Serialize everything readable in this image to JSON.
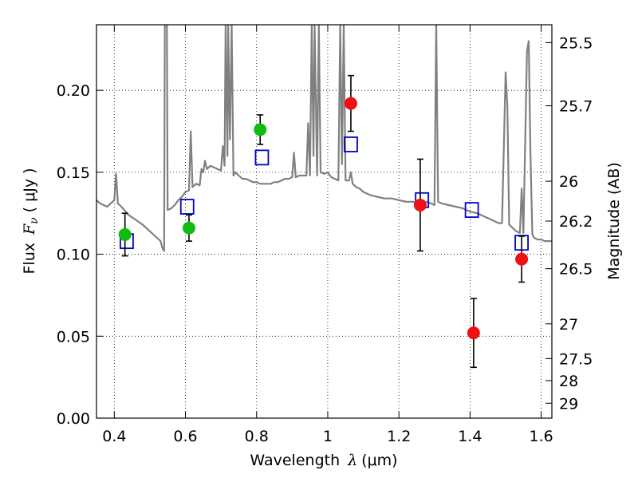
{
  "chart_data": {
    "type": "scatter",
    "xlabel_main": "Wavelength",
    "xlabel_symbol": "λ",
    "xlabel_unit": "(μm)",
    "ylabel_main": "Flux",
    "ylabel_symbol": "F",
    "ylabel_subscript": "ν",
    "ylabel_unit": "( μJy )",
    "y2label": "Magnitude (AB)",
    "xlim": [
      0.35,
      1.63
    ],
    "ylim": [
      0.0,
      0.24
    ],
    "grid": true,
    "grid_style": "dotted",
    "x_ticks": [
      {
        "value": 0.4,
        "label": "0.4"
      },
      {
        "value": 0.6,
        "label": "0.6"
      },
      {
        "value": 0.8,
        "label": "0.8"
      },
      {
        "value": 1.0,
        "label": "1"
      },
      {
        "value": 1.2,
        "label": "1.2"
      },
      {
        "value": 1.4,
        "label": "1.4"
      },
      {
        "value": 1.6,
        "label": "1.6"
      }
    ],
    "y_ticks": [
      {
        "value": 0.0,
        "label": "0.00"
      },
      {
        "value": 0.05,
        "label": "0.05"
      },
      {
        "value": 0.1,
        "label": "0.10"
      },
      {
        "value": 0.15,
        "label": "0.15"
      },
      {
        "value": 0.2,
        "label": "0.20"
      }
    ],
    "y2_ticks": [
      {
        "value": 25.5,
        "label": "25.5"
      },
      {
        "value": 25.7,
        "label": "25.7"
      },
      {
        "value": 26,
        "label": "26"
      },
      {
        "value": 26.2,
        "label": "26.2"
      },
      {
        "value": 26.5,
        "label": "26.5"
      },
      {
        "value": 27,
        "label": "27"
      },
      {
        "value": 27.5,
        "label": "27.5"
      },
      {
        "value": 28,
        "label": "28"
      },
      {
        "value": 29,
        "label": "29"
      }
    ],
    "series": [
      {
        "kind": "line",
        "color": "#808080",
        "points": [
          [
            0.35,
            0.133
          ],
          [
            0.36,
            0.131
          ],
          [
            0.37,
            0.13
          ],
          [
            0.38,
            0.129
          ],
          [
            0.39,
            0.131
          ],
          [
            0.4,
            0.133
          ],
          [
            0.405,
            0.149
          ],
          [
            0.41,
            0.131
          ],
          [
            0.42,
            0.129
          ],
          [
            0.44,
            0.124
          ],
          [
            0.46,
            0.121
          ],
          [
            0.48,
            0.118
          ],
          [
            0.5,
            0.114
          ],
          [
            0.52,
            0.11
          ],
          [
            0.53,
            0.108
          ],
          [
            0.535,
            0.104
          ],
          [
            0.54,
            0.102
          ],
          [
            0.542,
            0.24
          ],
          [
            0.548,
            0.24
          ],
          [
            0.55,
            0.127
          ],
          [
            0.56,
            0.128
          ],
          [
            0.57,
            0.13
          ],
          [
            0.58,
            0.133
          ],
          [
            0.59,
            0.135
          ],
          [
            0.6,
            0.138
          ],
          [
            0.61,
            0.139
          ],
          [
            0.615,
            0.175
          ],
          [
            0.62,
            0.141
          ],
          [
            0.63,
            0.143
          ],
          [
            0.64,
            0.142
          ],
          [
            0.645,
            0.152
          ],
          [
            0.65,
            0.15
          ],
          [
            0.655,
            0.157
          ],
          [
            0.66,
            0.152
          ],
          [
            0.67,
            0.154
          ],
          [
            0.68,
            0.153
          ],
          [
            0.69,
            0.152
          ],
          [
            0.7,
            0.151
          ],
          [
            0.705,
            0.166
          ],
          [
            0.71,
            0.154
          ],
          [
            0.713,
            0.24
          ],
          [
            0.718,
            0.16
          ],
          [
            0.72,
            0.24
          ],
          [
            0.725,
            0.17
          ],
          [
            0.73,
            0.24
          ],
          [
            0.735,
            0.148
          ],
          [
            0.74,
            0.15
          ],
          [
            0.75,
            0.148
          ],
          [
            0.76,
            0.146
          ],
          [
            0.77,
            0.146
          ],
          [
            0.78,
            0.145
          ],
          [
            0.79,
            0.144
          ],
          [
            0.8,
            0.144
          ],
          [
            0.81,
            0.143
          ],
          [
            0.82,
            0.143
          ],
          [
            0.83,
            0.143
          ],
          [
            0.84,
            0.143
          ],
          [
            0.85,
            0.144
          ],
          [
            0.86,
            0.144
          ],
          [
            0.87,
            0.145
          ],
          [
            0.88,
            0.146
          ],
          [
            0.89,
            0.146
          ],
          [
            0.9,
            0.147
          ],
          [
            0.905,
            0.162
          ],
          [
            0.91,
            0.147
          ],
          [
            0.92,
            0.148
          ],
          [
            0.93,
            0.148
          ],
          [
            0.94,
            0.148
          ],
          [
            0.945,
            0.18
          ],
          [
            0.95,
            0.148
          ],
          [
            0.955,
            0.24
          ],
          [
            0.96,
            0.16
          ],
          [
            0.963,
            0.24
          ],
          [
            0.97,
            0.148
          ],
          [
            0.975,
            0.24
          ],
          [
            0.98,
            0.15
          ],
          [
            0.99,
            0.149
          ],
          [
            1.0,
            0.15
          ],
          [
            1.01,
            0.147
          ],
          [
            1.02,
            0.146
          ],
          [
            1.03,
            0.145
          ],
          [
            1.035,
            0.24
          ],
          [
            1.04,
            0.155
          ],
          [
            1.045,
            0.24
          ],
          [
            1.05,
            0.145
          ],
          [
            1.06,
            0.145
          ],
          [
            1.065,
            0.15
          ],
          [
            1.07,
            0.143
          ],
          [
            1.08,
            0.141
          ],
          [
            1.09,
            0.14
          ],
          [
            1.1,
            0.138
          ],
          [
            1.12,
            0.136
          ],
          [
            1.14,
            0.135
          ],
          [
            1.16,
            0.134
          ],
          [
            1.18,
            0.134
          ],
          [
            1.2,
            0.133
          ],
          [
            1.22,
            0.132
          ],
          [
            1.24,
            0.132
          ],
          [
            1.25,
            0.131
          ],
          [
            1.26,
            0.133
          ],
          [
            1.27,
            0.131
          ],
          [
            1.28,
            0.132
          ],
          [
            1.29,
            0.131
          ],
          [
            1.3,
            0.13
          ],
          [
            1.305,
            0.24
          ],
          [
            1.31,
            0.132
          ],
          [
            1.32,
            0.131
          ],
          [
            1.34,
            0.13
          ],
          [
            1.36,
            0.129
          ],
          [
            1.38,
            0.128
          ],
          [
            1.4,
            0.126
          ],
          [
            1.42,
            0.125
          ],
          [
            1.44,
            0.123
          ],
          [
            1.46,
            0.121
          ],
          [
            1.48,
            0.119
          ],
          [
            1.49,
            0.119
          ],
          [
            1.5,
            0.211
          ],
          [
            1.505,
            0.19
          ],
          [
            1.51,
            0.118
          ],
          [
            1.52,
            0.116
          ],
          [
            1.53,
            0.114
          ],
          [
            1.54,
            0.113
          ],
          [
            1.545,
            0.14
          ],
          [
            1.55,
            0.113
          ],
          [
            1.56,
            0.224
          ],
          [
            1.565,
            0.23
          ],
          [
            1.57,
            0.16
          ],
          [
            1.575,
            0.112
          ],
          [
            1.58,
            0.11
          ],
          [
            1.59,
            0.109
          ],
          [
            1.6,
            0.109
          ],
          [
            1.61,
            0.108
          ],
          [
            1.63,
            0.108
          ]
        ]
      },
      {
        "kind": "model-squares",
        "color": "#0000cc",
        "points": [
          [
            0.435,
            0.108
          ],
          [
            0.605,
            0.129
          ],
          [
            0.815,
            0.159
          ],
          [
            1.065,
            0.167
          ],
          [
            1.265,
            0.133
          ],
          [
            1.405,
            0.127
          ],
          [
            1.545,
            0.107
          ]
        ]
      },
      {
        "kind": "observed",
        "color": "#11bb11",
        "points": [
          {
            "x": 0.43,
            "y": 0.112,
            "err": 0.013
          },
          {
            "x": 0.61,
            "y": 0.116,
            "err": 0.008
          },
          {
            "x": 0.81,
            "y": 0.176,
            "err": 0.009
          }
        ]
      },
      {
        "kind": "observed",
        "color": "#ee1111",
        "points": [
          {
            "x": 1.065,
            "y": 0.192,
            "err": 0.017
          },
          {
            "x": 1.26,
            "y": 0.13,
            "err": 0.028
          },
          {
            "x": 1.41,
            "y": 0.052,
            "err": 0.021
          },
          {
            "x": 1.545,
            "y": 0.097,
            "err": 0.014
          }
        ]
      }
    ]
  }
}
